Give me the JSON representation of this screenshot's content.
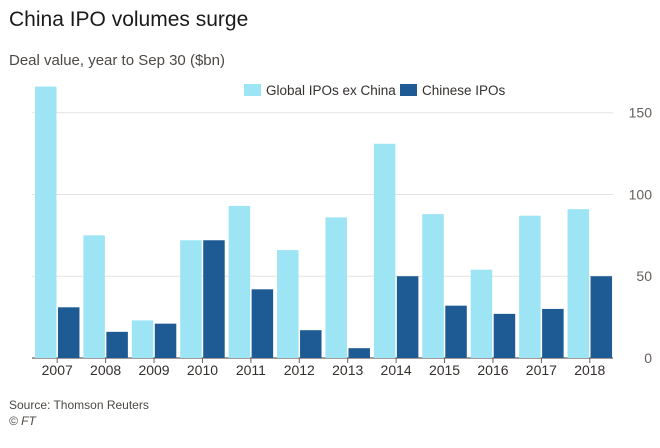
{
  "chart_data": {
    "type": "bar",
    "title": "China IPO volumes surge",
    "subtitle": "Deal value, year to Sep 30 ($bn)",
    "categories": [
      "2007",
      "2008",
      "2009",
      "2010",
      "2011",
      "2012",
      "2013",
      "2014",
      "2015",
      "2016",
      "2017",
      "2018"
    ],
    "series": [
      {
        "name": "Global IPOs ex China",
        "color": "#9de5f5",
        "values": [
          166,
          75,
          23,
          72,
          93,
          66,
          86,
          131,
          88,
          54,
          87,
          91
        ]
      },
      {
        "name": "Chinese IPOs",
        "color": "#1e5a93",
        "values": [
          31,
          16,
          21,
          72,
          42,
          17,
          6,
          50,
          32,
          27,
          30,
          50
        ]
      }
    ],
    "yticks": [
      0,
      50,
      100,
      150
    ],
    "ylim": [
      0,
      170
    ],
    "grid": true,
    "legend": "top-right",
    "source": "Source: Thomson Reuters",
    "credit": "© FT"
  }
}
